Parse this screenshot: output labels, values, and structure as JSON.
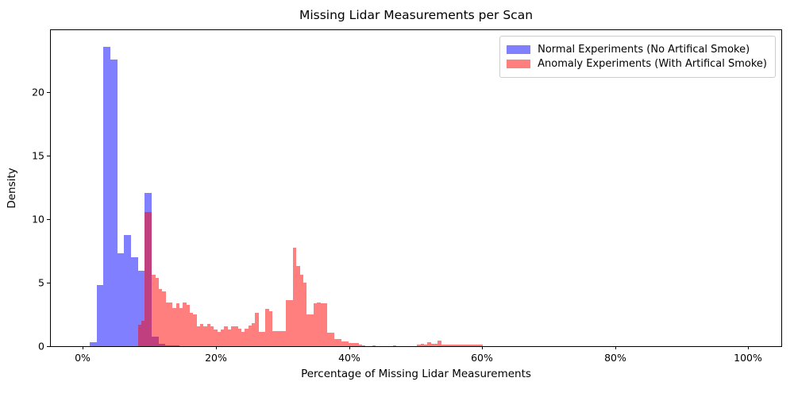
{
  "chart_data": {
    "type": "bar",
    "subtype": "overlaid-density-histogram",
    "title": "Missing Lidar Measurements per Scan",
    "xlabel": "Percentage of Missing Lidar Measurements",
    "ylabel": "Density",
    "grid": false,
    "legend_position": "upper right",
    "xlim": [
      -4.83,
      105.0
    ],
    "ylim": [
      0,
      24.9
    ],
    "xticks": [
      {
        "value": 0,
        "label": "0%"
      },
      {
        "value": 20,
        "label": "20%"
      },
      {
        "value": 40,
        "label": "40%"
      },
      {
        "value": 60,
        "label": "60%"
      },
      {
        "value": 80,
        "label": "80%"
      },
      {
        "value": 100,
        "label": "100%"
      }
    ],
    "yticks": [
      {
        "value": 0,
        "label": "0"
      },
      {
        "value": 5,
        "label": "5"
      },
      {
        "value": 10,
        "label": "10"
      },
      {
        "value": 15,
        "label": "15"
      },
      {
        "value": 20,
        "label": "20"
      }
    ],
    "series": [
      {
        "name": "Normal Experiments (No Artifical Smoke)",
        "color": "#0000ff",
        "alpha": 0.5,
        "bin_start_pct": 1.0,
        "bin_width_pct": 1.036,
        "densities": [
          0.3,
          4.8,
          23.6,
          22.6,
          7.3,
          8.75,
          7.0,
          5.95,
          12.1,
          0.75,
          0.2,
          0.06,
          0.05
        ]
      },
      {
        "name": "Anomaly Experiments (With Artifical Smoke)",
        "color": "#ff0000",
        "alpha": 0.5,
        "bin_start_pct": 8.28,
        "bin_width_pct": 0.518,
        "densities": [
          1.7,
          2.0,
          10.55,
          10.55,
          5.6,
          5.4,
          4.5,
          4.3,
          3.45,
          3.45,
          3.0,
          3.35,
          3.0,
          3.45,
          3.25,
          2.6,
          2.5,
          1.55,
          1.75,
          1.55,
          1.75,
          1.55,
          1.3,
          1.1,
          1.3,
          1.55,
          1.3,
          1.55,
          1.55,
          1.35,
          1.12,
          1.35,
          1.6,
          1.8,
          2.63,
          1.12,
          1.12,
          2.95,
          2.73,
          1.18,
          1.18,
          1.18,
          1.18,
          3.65,
          3.65,
          7.75,
          6.35,
          5.6,
          5.0,
          2.52,
          2.52,
          3.35,
          3.42,
          3.35,
          3.37,
          1.07,
          1.07,
          0.56,
          0.56,
          0.39,
          0.39,
          0.25,
          0.25,
          0.25,
          0.1,
          0.06,
          0,
          0,
          0.05,
          0,
          0,
          0,
          0,
          0,
          0.05,
          0,
          0,
          0,
          0,
          0,
          0,
          0.15,
          0.18,
          0.15,
          0.29,
          0.19,
          0.19,
          0.41,
          0.12,
          0.12,
          0.12,
          0.12,
          0.12,
          0.12,
          0.12,
          0.12,
          0.12,
          0.12,
          0.12,
          0.12
        ]
      }
    ]
  }
}
